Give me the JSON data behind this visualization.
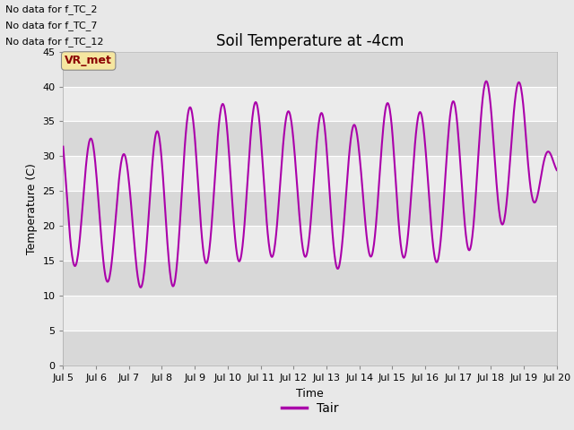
{
  "title": "Soil Temperature at -4cm",
  "ylabel": "Temperature (C)",
  "xlabel": "Time",
  "ylim": [
    0,
    45
  ],
  "xlim": [
    5,
    20
  ],
  "xtick_labels": [
    "Jul 5",
    "Jul 6",
    "Jul 7",
    "Jul 8",
    "Jul 9",
    "Jul 10",
    "Jul 11",
    "Jul 12",
    "Jul 13",
    "Jul 14",
    "Jul 15",
    "Jul 16",
    "Jul 17",
    "Jul 18",
    "Jul 19",
    "Jul 20"
  ],
  "ytick_values": [
    0,
    5,
    10,
    15,
    20,
    25,
    30,
    35,
    40,
    45
  ],
  "line_color": "#aa00aa",
  "line_width": 1.5,
  "fig_bg_color": "#e8e8e8",
  "plot_bg_color": "#e0e0e0",
  "band_light_color": "#ebebeb",
  "band_dark_color": "#d8d8d8",
  "no_data_texts": [
    "No data for f_TC_2",
    "No data for f_TC_7",
    "No data for f_TC_12"
  ],
  "legend_label": "Tair",
  "vr_met_label": "VR_met",
  "title_fontsize": 12,
  "axis_fontsize": 9,
  "tick_fontsize": 8,
  "annotation_fontsize": 8,
  "day_mins": [
    15.5,
    12.0,
    12.0,
    9.7,
    14.5,
    15.0,
    14.8,
    17.0,
    13.0,
    15.5,
    15.8,
    14.8,
    14.8,
    19.8,
    21.0,
    28.0
  ],
  "day_maxs": [
    35.5,
    32.0,
    30.0,
    34.2,
    37.5,
    37.5,
    37.8,
    36.2,
    36.2,
    34.2,
    38.2,
    36.0,
    38.2,
    41.2,
    40.5,
    28.0
  ]
}
